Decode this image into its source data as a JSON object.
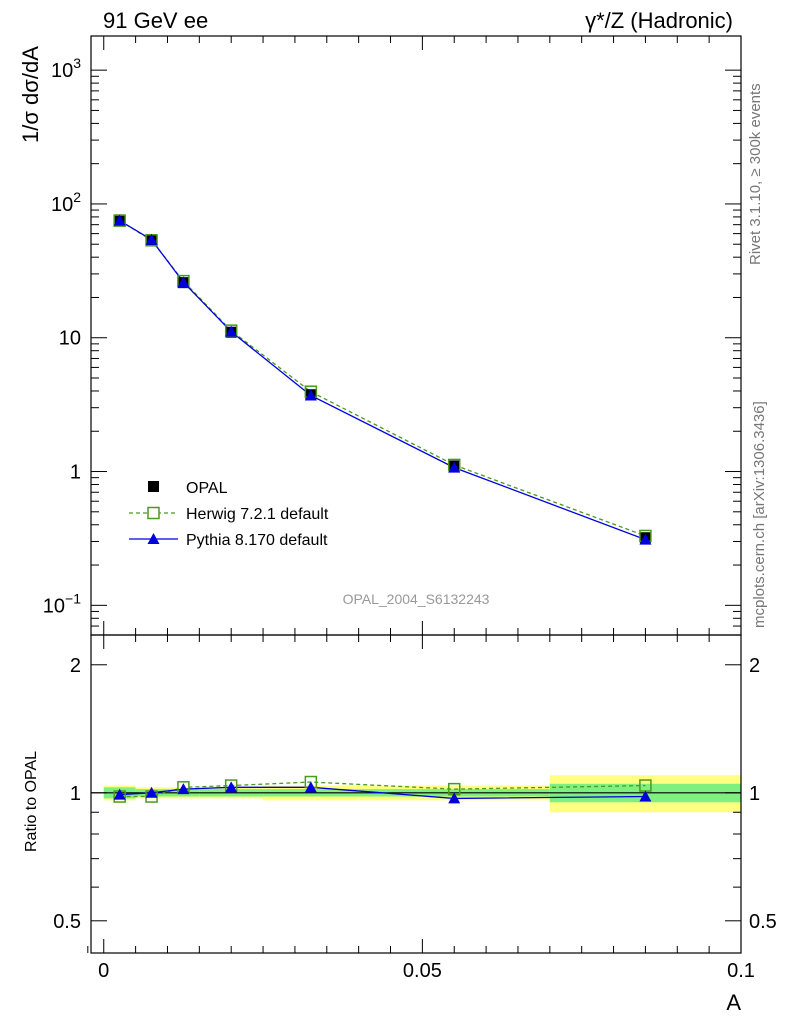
{
  "header": {
    "left": "91 GeV ee",
    "right": "γ*/Z (Hadronic)"
  },
  "side_labels": {
    "rivet": "Rivet 3.1.10, ≥ 300k events",
    "mcplots": "mcplots.cern.ch [arXiv:1306.3436]"
  },
  "analysis_id": "OPAL_2004_S6132243",
  "legend": {
    "opal": "OPAL",
    "herwig": "Herwig 7.2.1 default",
    "pythia": "Pythia 8.170 default"
  },
  "colors": {
    "data": "#000000",
    "herwig": "#4a9a1e",
    "pythia": "#0000dd",
    "band_inner": "#7ff07f",
    "band_outer": "#ffff80",
    "analysis_text": "#999999",
    "side_text": "#777777"
  },
  "chart_data": [
    {
      "type": "scatter",
      "panel": "main",
      "title": "",
      "xlabel": "A",
      "ylabel": "1/σ dσ/dA",
      "x_scale": "linear",
      "y_scale": "log",
      "xlim": [
        -0.002,
        0.1
      ],
      "ylim": [
        0.06,
        1800
      ],
      "yticks": [
        {
          "value": 0.1,
          "base": "10",
          "exp": "−1"
        },
        {
          "value": 1,
          "label": "1"
        },
        {
          "value": 10,
          "label": "10"
        },
        {
          "value": 100,
          "base": "10",
          "exp": "2"
        },
        {
          "value": 1000,
          "base": "10",
          "exp": "3"
        }
      ],
      "legend_position": "lower-left",
      "x": [
        0.0025,
        0.0075,
        0.0125,
        0.02,
        0.0325,
        0.055,
        0.085
      ],
      "series": [
        {
          "name": "OPAL",
          "marker": "filled-square",
          "values": [
            76,
            54,
            25.8,
            11.0,
            3.75,
            1.1,
            0.32
          ]
        },
        {
          "name": "Herwig 7.2.1 default",
          "marker": "open-square",
          "line": "dashed",
          "values": [
            75,
            53.5,
            26.5,
            11.3,
            3.95,
            1.12,
            0.33
          ]
        },
        {
          "name": "Pythia 8.170 default",
          "marker": "filled-triangle",
          "line": "solid",
          "values": [
            75,
            54,
            26.0,
            11.1,
            3.7,
            1.07,
            0.31
          ]
        }
      ]
    },
    {
      "type": "line",
      "panel": "ratio",
      "xlabel": "A",
      "ylabel": "Ratio to OPAL",
      "x_scale": "linear",
      "y_scale": "log",
      "xlim": [
        -0.002,
        0.1
      ],
      "ylim": [
        0.42,
        2.35
      ],
      "xticks": [
        {
          "value": 0,
          "label": "0"
        },
        {
          "value": 0.05,
          "label": "0.05"
        },
        {
          "value": 0.1,
          "label": "0.1"
        }
      ],
      "yticks": [
        {
          "value": 0.5,
          "label": "0.5"
        },
        {
          "value": 1,
          "label": "1"
        },
        {
          "value": 2,
          "label": "2"
        }
      ],
      "bins": [
        [
          0,
          0.005
        ],
        [
          0.005,
          0.01
        ],
        [
          0.01,
          0.015
        ],
        [
          0.015,
          0.025
        ],
        [
          0.025,
          0.04
        ],
        [
          0.04,
          0.07
        ],
        [
          0.07,
          0.1
        ]
      ],
      "band_inner": [
        0.03,
        0.02,
        0.02,
        0.02,
        0.02,
        0.02,
        0.05
      ],
      "band_outer": [
        0.04,
        0.03,
        0.03,
        0.03,
        0.04,
        0.04,
        0.1
      ],
      "x": [
        0.0025,
        0.0075,
        0.0125,
        0.02,
        0.0325,
        0.055,
        0.085
      ],
      "series": [
        {
          "name": "Herwig 7.2.1 default",
          "values": [
            0.98,
            0.98,
            1.03,
            1.04,
            1.06,
            1.02,
            1.04
          ]
        },
        {
          "name": "Pythia 8.170 default",
          "values": [
            0.99,
            1.0,
            1.02,
            1.03,
            1.03,
            0.97,
            0.98
          ]
        }
      ]
    }
  ]
}
